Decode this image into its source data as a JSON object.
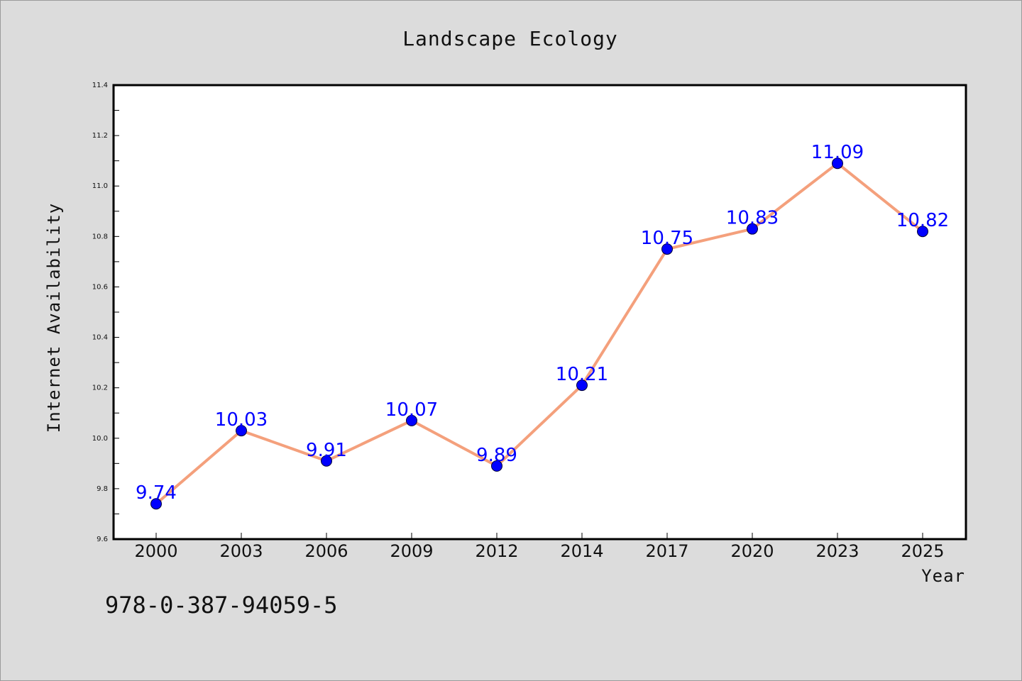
{
  "chart_data": {
    "type": "line",
    "title": "Landscape Ecology",
    "xlabel": "Year",
    "ylabel": "Internet Availability",
    "categories": [
      "2000",
      "2003",
      "2006",
      "2009",
      "2012",
      "2014",
      "2017",
      "2020",
      "2023",
      "2025"
    ],
    "series": [
      {
        "values": [
          9.74,
          10.03,
          9.91,
          10.07,
          9.89,
          10.21,
          10.75,
          10.83,
          11.09,
          10.82
        ]
      }
    ],
    "data_labels": [
      "9.74",
      "10.03",
      "9.91",
      "10.07",
      "9.89",
      "10.21",
      "10.75",
      "10.83",
      "11.09",
      "10.82"
    ],
    "ylim": [
      9.6,
      11.4
    ],
    "yticks": [
      "9.6",
      "9.8",
      "10.0",
      "10.2",
      "10.4",
      "10.6",
      "10.8",
      "11.0",
      "11.2",
      "11.4"
    ],
    "grid": false,
    "line_color": "#f4a07c",
    "marker_color": "#0000ff",
    "label_color": "#0000ff"
  },
  "footer": {
    "isbn": "978-0-387-94059-5"
  }
}
